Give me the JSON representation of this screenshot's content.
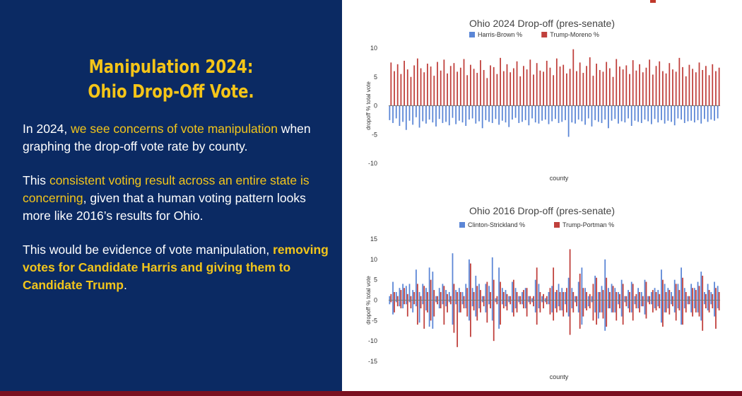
{
  "slide": {
    "title_line1": "Manipulation 2024:",
    "title_line2": "Ohio Drop-Off Vote.",
    "p1": {
      "a": "In 2024, ",
      "b": "we see concerns of vote manipulation",
      "c": " when graphing the drop-off vote rate by county."
    },
    "p2": {
      "a": "This ",
      "b": "consistent voting result across an entire state is concerning",
      "c": ", given that a human voting pattern looks more like 2016’s results for Ohio."
    },
    "p3": {
      "a": "This would be evidence of vote manipulation, ",
      "b": "removing votes for Candidate Harris and giving them to Candidate Trump",
      "c": "."
    }
  },
  "colors": {
    "panel": "#0b2a63",
    "accent": "#f2c51b",
    "blue_series": "#5b86d6",
    "red_series": "#c0403c"
  },
  "chart_data": [
    {
      "type": "bar",
      "title": "Ohio 2024 Drop-off (pres-senate)",
      "xlabel": "county",
      "ylabel": "dropoff % total vote",
      "ylim": [
        -10,
        10
      ],
      "yticks": [
        10,
        5,
        0,
        -5,
        -10
      ],
      "grid": false,
      "legend_position": "top-center",
      "series": [
        {
          "name": "Harris-Brown %",
          "color": "#5b86d6",
          "values": [
            -2.5,
            -3.0,
            -2.2,
            -3.5,
            -2.8,
            -4.2,
            -2.6,
            -3.3,
            -2.0,
            -3.8,
            -2.7,
            -3.1,
            -2.4,
            -2.9,
            -3.6,
            -2.3,
            -3.0,
            -2.8,
            -3.4,
            -2.1,
            -3.2,
            -2.6,
            -2.9,
            -3.5,
            -2.4,
            -2.2,
            -3.1,
            -2.7,
            -3.9,
            -2.5,
            -2.8,
            -3.0,
            -2.3,
            -3.3,
            -2.6,
            -2.9,
            -3.7,
            -2.4,
            -2.1,
            -3.0,
            -2.8,
            -2.5,
            -3.4,
            -2.2,
            -2.9,
            -3.1,
            -2.6,
            -2.4,
            -3.2,
            -2.7,
            -2.3,
            -3.0,
            -2.8,
            -2.5,
            -5.4,
            -2.9,
            -3.1,
            -2.4,
            -2.7,
            -3.3,
            -2.2,
            -3.6,
            -2.5,
            -2.8,
            -3.0,
            -2.4,
            -3.9,
            -2.6,
            -2.3,
            -3.1,
            -2.7,
            -2.9,
            -2.2,
            -3.5,
            -2.6,
            -2.8,
            -3.0,
            -2.4,
            -2.7,
            -3.2,
            -2.3,
            -2.9,
            -2.5,
            -3.1,
            -2.6,
            -2.8,
            -3.4,
            -2.2,
            -2.4,
            -3.0,
            -2.7,
            -2.6,
            -2.9,
            -2.5,
            -3.1,
            -2.3,
            -2.8,
            -2.4,
            -2.6,
            -2.2
          ]
        },
        {
          "name": "Trump-Moreno %",
          "color": "#c0403c",
          "values": [
            7.5,
            6.0,
            7.2,
            5.5,
            7.8,
            6.3,
            5.0,
            7.0,
            8.2,
            6.5,
            5.8,
            7.3,
            6.8,
            5.2,
            7.6,
            6.1,
            8.0,
            5.6,
            6.9,
            7.4,
            5.9,
            6.6,
            8.1,
            5.3,
            7.1,
            6.4,
            5.7,
            7.9,
            6.2,
            4.8,
            7.0,
            6.7,
            5.5,
            8.3,
            6.0,
            7.2,
            5.8,
            6.5,
            7.7,
            5.1,
            6.9,
            6.3,
            8.0,
            5.4,
            7.4,
            6.1,
            5.9,
            7.8,
            6.6,
            5.3,
            8.2,
            6.8,
            7.1,
            5.6,
            6.4,
            9.8,
            6.0,
            7.5,
            5.7,
            6.9,
            8.4,
            5.2,
            7.3,
            6.2,
            5.9,
            7.6,
            6.5,
            5.0,
            8.1,
            6.8,
            6.3,
            7.0,
            5.5,
            7.9,
            6.1,
            7.2,
            5.8,
            6.6,
            8.0,
            5.4,
            6.9,
            7.7,
            6.0,
            5.6,
            7.4,
            6.3,
            5.9,
            8.3,
            6.7,
            5.1,
            7.1,
            6.4,
            5.8,
            7.5,
            6.2,
            6.9,
            5.3,
            7.2,
            6.0,
            6.6
          ]
        }
      ]
    },
    {
      "type": "bar",
      "title": "Ohio 2016 Drop-off (pres-senate)",
      "xlabel": "county",
      "ylabel": "dropoff % total vote",
      "ylim": [
        -15,
        15
      ],
      "yticks": [
        15,
        10,
        5,
        0,
        -5,
        -10,
        -15
      ],
      "grid": false,
      "legend_position": "top-center",
      "series": [
        {
          "name": "Clinton-Strickland %",
          "color": "#5b86d6",
          "values": [
            1.0,
            4.5,
            2.0,
            3.0,
            4.0,
            3.5,
            4.0,
            2.5,
            7.5,
            2.0,
            4.0,
            3.0,
            8.0,
            7.0,
            1.0,
            3.0,
            4.0,
            2.5,
            2.0,
            11.5,
            2.5,
            3.0,
            2.0,
            4.0,
            10.0,
            3.0,
            6.0,
            4.0,
            1.0,
            4.0,
            3.5,
            10.5,
            0.5,
            8.0,
            3.0,
            2.5,
            1.0,
            4.5,
            3.0,
            1.0,
            2.0,
            3.0,
            1.0,
            0.5,
            5.0,
            4.0,
            1.0,
            0.5,
            2.0,
            3.5,
            2.0,
            4.0,
            3.0,
            2.0,
            5.5,
            3.0,
            1.0,
            4.5,
            8.0,
            3.0,
            1.0,
            1.0,
            6.0,
            2.0,
            3.5,
            10.0,
            3.0,
            4.0,
            3.0,
            2.0,
            5.0,
            1.0,
            2.5,
            4.5,
            1.0,
            3.0,
            2.0,
            5.0,
            1.0,
            2.0,
            3.0,
            2.5,
            7.5,
            4.0,
            3.0,
            2.0,
            5.0,
            4.0,
            8.0,
            3.0,
            1.0,
            4.0,
            3.0,
            4.5,
            7.0,
            2.0,
            4.0,
            2.0,
            4.5,
            3.5
          ],
          "negatives": [
            -1.0,
            -3.5,
            -0.5,
            -1.5,
            -2.0,
            -1.0,
            -0.5,
            -3.0,
            -1.5,
            -5.5,
            -1.0,
            -2.5,
            -6.5,
            -7.0,
            -0.5,
            -2.0,
            -1.0,
            -1.5,
            -0.5,
            -6.0,
            -1.0,
            -3.0,
            -1.0,
            -2.0,
            -5.0,
            -1.5,
            -4.0,
            -2.0,
            -0.5,
            -3.0,
            -1.0,
            -5.0,
            -0.5,
            -7.0,
            -1.0,
            -1.5,
            -0.5,
            -3.0,
            -2.0,
            -0.5,
            -1.0,
            -2.0,
            -0.5,
            -0.5,
            -3.0,
            -2.0,
            -0.5,
            -0.5,
            -1.0,
            -3.0,
            -2.0,
            -1.5,
            -2.5,
            -1.0,
            -4.0,
            -2.0,
            -0.5,
            -3.0,
            -6.0,
            -2.0,
            -1.5,
            -0.5,
            -3.0,
            -4.5,
            -3.0,
            -7.5,
            -2.0,
            -3.0,
            -3.0,
            -1.0,
            -4.0,
            -0.5,
            -2.0,
            -3.0,
            -1.0,
            -2.0,
            -1.5,
            -3.5,
            -0.5,
            -1.0,
            -2.0,
            -1.5,
            -5.5,
            -3.0,
            -2.0,
            -1.0,
            -3.0,
            -2.0,
            -6.0,
            -2.0,
            -1.0,
            -3.0,
            -2.0,
            -3.0,
            -5.0,
            -1.0,
            -2.5,
            -1.0,
            -4.0,
            -2.0
          ]
        },
        {
          "name": "Trump-Portman %",
          "color": "#c0403c",
          "values": [
            1.5,
            2.0,
            1.0,
            2.5,
            3.0,
            1.5,
            1.0,
            2.0,
            4.0,
            1.0,
            3.5,
            2.0,
            5.0,
            2.5,
            1.0,
            2.0,
            3.5,
            1.5,
            1.0,
            4.0,
            2.0,
            2.0,
            1.0,
            3.0,
            9.0,
            2.0,
            3.5,
            2.5,
            1.0,
            4.5,
            2.0,
            5.0,
            1.0,
            4.5,
            2.0,
            1.5,
            1.0,
            5.0,
            2.0,
            1.0,
            2.5,
            3.0,
            1.0,
            1.0,
            8.0,
            2.0,
            1.5,
            1.0,
            3.0,
            8.0,
            2.5,
            2.0,
            2.0,
            3.0,
            12.5,
            2.0,
            1.0,
            6.5,
            3.0,
            2.0,
            1.5,
            4.0,
            5.5,
            2.0,
            2.5,
            5.5,
            2.0,
            3.5,
            2.0,
            1.5,
            4.0,
            1.0,
            2.0,
            4.0,
            1.5,
            2.0,
            1.0,
            4.5,
            1.0,
            2.5,
            2.0,
            1.5,
            5.0,
            2.0,
            2.5,
            1.0,
            4.0,
            2.5,
            5.5,
            2.0,
            1.0,
            3.0,
            2.5,
            3.5,
            6.0,
            1.5,
            2.5,
            1.5,
            3.0,
            2.0
          ],
          "negatives": [
            -0.5,
            -3.0,
            -1.5,
            -2.0,
            -1.0,
            -4.0,
            -2.0,
            -1.0,
            -6.0,
            -2.0,
            -7.0,
            -3.0,
            -5.0,
            -4.0,
            -1.0,
            -2.0,
            -6.0,
            -3.0,
            -1.0,
            -8.0,
            -11.5,
            -3.0,
            -2.0,
            -4.0,
            -9.0,
            -2.5,
            -5.0,
            -3.0,
            -1.5,
            -5.5,
            -2.0,
            -10.0,
            -1.0,
            -6.0,
            -2.0,
            -2.5,
            -1.0,
            -4.0,
            -3.0,
            -1.0,
            -2.0,
            -4.0,
            -1.0,
            -1.5,
            -6.0,
            -3.0,
            -2.0,
            -1.0,
            -3.5,
            -5.0,
            -3.0,
            -2.5,
            -4.0,
            -3.0,
            -8.5,
            -3.0,
            -1.5,
            -7.0,
            -4.0,
            -2.5,
            -2.0,
            -5.0,
            -6.0,
            -3.0,
            -4.5,
            -6.5,
            -2.0,
            -3.0,
            -5.0,
            -2.0,
            -6.0,
            -1.5,
            -3.0,
            -5.0,
            -2.0,
            -3.0,
            -1.5,
            -4.5,
            -1.0,
            -3.0,
            -2.5,
            -2.0,
            -6.5,
            -3.0,
            -3.5,
            -1.5,
            -5.0,
            -2.5,
            -6.0,
            -3.0,
            -1.0,
            -4.0,
            -3.0,
            -4.0,
            -7.5,
            -2.0,
            -3.0,
            -2.0,
            -7.0,
            -2.5
          ]
        }
      ]
    }
  ]
}
